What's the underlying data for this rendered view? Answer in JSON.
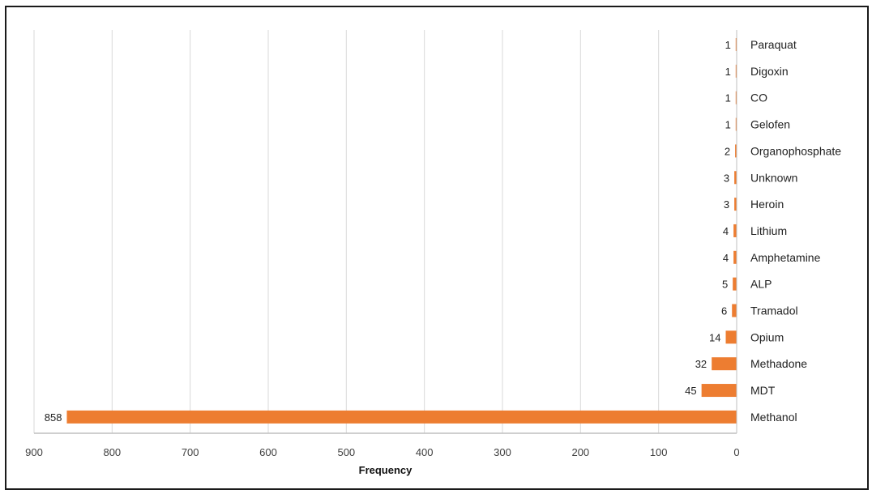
{
  "chart_data": {
    "type": "bar",
    "orientation": "horizontal",
    "title": "",
    "xlabel": "Frequency",
    "ylabel": "",
    "xlim": [
      0,
      900
    ],
    "x_reversed": true,
    "x_ticks": [
      900,
      800,
      700,
      600,
      500,
      400,
      300,
      200,
      100,
      0
    ],
    "grid": "vertical",
    "categories": [
      "Paraquat",
      "Digoxin",
      "CO",
      "Gelofen",
      "Organophosphate",
      "Unknown",
      "Heroin",
      "Lithium",
      "Amphetamine",
      "ALP",
      "Tramadol",
      "Opium",
      "Methadone",
      "MDT",
      "Methanol"
    ],
    "values": [
      1,
      1,
      1,
      1,
      2,
      3,
      3,
      4,
      4,
      5,
      6,
      14,
      32,
      45,
      858
    ],
    "bar_color": "#ED7D31",
    "grid_color": "#D9D9D9",
    "axis_color": "#BFBFBF"
  }
}
